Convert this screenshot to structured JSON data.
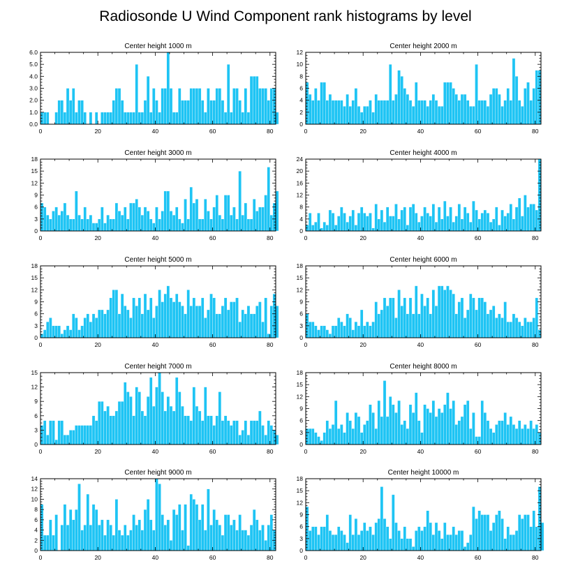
{
  "title": "Radiosonde U Wind Component rank histograms by level",
  "chart_data": [
    {
      "type": "bar",
      "title": "Center height 1000 m",
      "xlim": [
        0,
        82
      ],
      "ylim": [
        0,
        6
      ],
      "xticks": [
        0,
        20,
        40,
        60,
        80
      ],
      "yticks": [
        0,
        1,
        2,
        3,
        4,
        5,
        6
      ],
      "yticklabels": [
        "0.0",
        "1.0",
        "2.0",
        "3.0",
        "4.0",
        "5.0",
        "6.0"
      ],
      "values": [
        1,
        1,
        1,
        0,
        0,
        1,
        2,
        2,
        1,
        3,
        2,
        3,
        1,
        2,
        2,
        1,
        0,
        1,
        0,
        1,
        0,
        1,
        1,
        1,
        1,
        2,
        3,
        3,
        2,
        1,
        1,
        1,
        1,
        5,
        1,
        1,
        2,
        4,
        1,
        3,
        2,
        1,
        3,
        3,
        6,
        3,
        1,
        1,
        3,
        2,
        2,
        2,
        3,
        3,
        3,
        3,
        2,
        1,
        3,
        2,
        2,
        3,
        3,
        2,
        1,
        5,
        1,
        3,
        3,
        2,
        1,
        3,
        1,
        4,
        4,
        4,
        3,
        3,
        3,
        2,
        3,
        3,
        1
      ]
    },
    {
      "type": "bar",
      "title": "Center height 2000 m",
      "xlim": [
        0,
        82
      ],
      "ylim": [
        0,
        12
      ],
      "xticks": [
        0,
        20,
        40,
        60,
        80
      ],
      "yticks": [
        0,
        2,
        4,
        6,
        8,
        10,
        12
      ],
      "yticklabels": [
        "0",
        "2",
        "4",
        "6",
        "8",
        "10",
        "12"
      ],
      "values": [
        7,
        5,
        4,
        6,
        4,
        7,
        7,
        4,
        5,
        4,
        4,
        4,
        4,
        3,
        5,
        3,
        4,
        6,
        3,
        2,
        3,
        3,
        4,
        2,
        5,
        4,
        4,
        4,
        4,
        10,
        4,
        5,
        9,
        8,
        6,
        5,
        4,
        3,
        7,
        4,
        4,
        4,
        3,
        4,
        5,
        4,
        3,
        3,
        7,
        7,
        7,
        6,
        5,
        4,
        5,
        5,
        4,
        3,
        3,
        10,
        4,
        4,
        4,
        3,
        5,
        6,
        6,
        5,
        3,
        4,
        6,
        4,
        11,
        8,
        4,
        3,
        6,
        7,
        4,
        6,
        9,
        9
      ]
    },
    {
      "type": "bar",
      "title": "Center height 3000 m",
      "xlim": [
        0,
        82
      ],
      "ylim": [
        0,
        18
      ],
      "xticks": [
        0,
        20,
        40,
        60,
        80
      ],
      "yticks": [
        0,
        3,
        6,
        9,
        12,
        15,
        18
      ],
      "yticklabels": [
        "0",
        "3",
        "6",
        "9",
        "12",
        "15",
        "18"
      ],
      "values": [
        7,
        6,
        4,
        3,
        5,
        6,
        4,
        5,
        7,
        4,
        3,
        3,
        10,
        4,
        3,
        6,
        3,
        4,
        2,
        2,
        3,
        6,
        2,
        4,
        3,
        3,
        7,
        5,
        4,
        6,
        3,
        7,
        7,
        8,
        6,
        4,
        6,
        5,
        3,
        2,
        6,
        3,
        5,
        10,
        10,
        5,
        4,
        6,
        3,
        2,
        8,
        3,
        11,
        7,
        8,
        3,
        3,
        8,
        5,
        3,
        6,
        9,
        4,
        3,
        9,
        9,
        4,
        6,
        3,
        15,
        4,
        7,
        3,
        3,
        8,
        5,
        6,
        6,
        9,
        16,
        4,
        7,
        10
      ]
    },
    {
      "type": "bar",
      "title": "Center height 4000 m",
      "xlim": [
        0,
        82
      ],
      "ylim": [
        0,
        24
      ],
      "xticks": [
        0,
        20,
        40,
        60,
        80
      ],
      "yticks": [
        0,
        4,
        8,
        12,
        16,
        20,
        24
      ],
      "yticklabels": [
        "0",
        "4",
        "8",
        "12",
        "16",
        "20",
        "24"
      ],
      "values": [
        2,
        6,
        2,
        3,
        6,
        1,
        3,
        2,
        7,
        6,
        2,
        5,
        8,
        6,
        3,
        5,
        7,
        2,
        6,
        8,
        6,
        5,
        6,
        1,
        9,
        4,
        7,
        3,
        8,
        5,
        5,
        9,
        4,
        7,
        8,
        2,
        8,
        9,
        6,
        3,
        5,
        8,
        6,
        5,
        9,
        3,
        8,
        4,
        10,
        5,
        8,
        3,
        5,
        9,
        4,
        8,
        6,
        3,
        10,
        7,
        4,
        6,
        7,
        6,
        3,
        4,
        8,
        2,
        7,
        5,
        6,
        9,
        4,
        8,
        11,
        5,
        12,
        8,
        9,
        9,
        7,
        24
      ]
    },
    {
      "type": "bar",
      "title": "Center height 5000 m",
      "xlim": [
        0,
        82
      ],
      "ylim": [
        0,
        18
      ],
      "xticks": [
        0,
        20,
        40,
        60,
        80
      ],
      "yticks": [
        0,
        3,
        6,
        9,
        12,
        15,
        18
      ],
      "yticklabels": [
        "0",
        "3",
        "6",
        "9",
        "12",
        "15",
        "18"
      ],
      "values": [
        1,
        2,
        4,
        5,
        3,
        3,
        3,
        1,
        2,
        3,
        2,
        6,
        5,
        2,
        3,
        5,
        6,
        4,
        6,
        5,
        7,
        7,
        6,
        7,
        10,
        12,
        12,
        6,
        11,
        8,
        7,
        5,
        10,
        8,
        10,
        6,
        11,
        7,
        10,
        5,
        8,
        12,
        9,
        11,
        13,
        10,
        9,
        11,
        9,
        8,
        6,
        12,
        8,
        10,
        8,
        8,
        10,
        5,
        7,
        11,
        10,
        6,
        6,
        8,
        10,
        7,
        9,
        9,
        10,
        4,
        7,
        6,
        8,
        6,
        6,
        8,
        9,
        4,
        10,
        1,
        8,
        11,
        8
      ]
    },
    {
      "type": "bar",
      "title": "Center height 6000 m",
      "xlim": [
        0,
        82
      ],
      "ylim": [
        0,
        18
      ],
      "xticks": [
        0,
        20,
        40,
        60,
        80
      ],
      "yticks": [
        0,
        3,
        6,
        9,
        12,
        15,
        18
      ],
      "yticklabels": [
        "0",
        "3",
        "6",
        "9",
        "12",
        "15",
        "18"
      ],
      "values": [
        6,
        4,
        4,
        3,
        2,
        3,
        3,
        2,
        1,
        3,
        3,
        5,
        4,
        3,
        6,
        5,
        2,
        4,
        3,
        7,
        3,
        4,
        3,
        4,
        9,
        6,
        7,
        10,
        8,
        10,
        10,
        5,
        12,
        8,
        10,
        6,
        10,
        6,
        13,
        6,
        11,
        8,
        10,
        6,
        12,
        8,
        13,
        13,
        12,
        13,
        12,
        11,
        6,
        9,
        10,
        5,
        7,
        11,
        10,
        7,
        10,
        10,
        9,
        6,
        7,
        8,
        5,
        6,
        5,
        9,
        4,
        4,
        6,
        5,
        4,
        3,
        5,
        4,
        4,
        5,
        10,
        2
      ]
    },
    {
      "type": "bar",
      "title": "Center height 7000 m",
      "xlim": [
        0,
        82
      ],
      "ylim": [
        0,
        15
      ],
      "xticks": [
        0,
        20,
        40,
        60,
        80
      ],
      "yticks": [
        0,
        3,
        6,
        9,
        12,
        15
      ],
      "yticklabels": [
        "0",
        "3",
        "6",
        "9",
        "12",
        "15"
      ],
      "values": [
        4,
        5,
        2,
        5,
        5,
        1,
        5,
        5,
        2,
        2,
        3,
        3,
        4,
        4,
        4,
        4,
        4,
        4,
        6,
        5,
        9,
        9,
        7,
        8,
        6,
        6,
        7,
        9,
        9,
        13,
        11,
        10,
        6,
        12,
        11,
        7,
        6,
        10,
        14,
        8,
        12,
        15,
        11,
        7,
        10,
        8,
        7,
        14,
        11,
        8,
        6,
        6,
        5,
        12,
        8,
        7,
        5,
        12,
        6,
        6,
        4,
        6,
        11,
        5,
        6,
        5,
        4,
        5,
        5,
        2,
        3,
        5,
        2,
        5,
        5,
        5,
        7,
        4,
        2,
        5,
        4,
        3,
        2
      ]
    },
    {
      "type": "bar",
      "title": "Center height 8000 m",
      "xlim": [
        0,
        82
      ],
      "ylim": [
        0,
        18
      ],
      "xticks": [
        0,
        20,
        40,
        60,
        80
      ],
      "yticks": [
        0,
        3,
        6,
        9,
        12,
        15,
        18
      ],
      "yticklabels": [
        "0",
        "3",
        "6",
        "9",
        "12",
        "15",
        "18"
      ],
      "values": [
        4,
        4,
        4,
        3,
        2,
        1,
        3,
        6,
        4,
        5,
        11,
        4,
        5,
        3,
        8,
        6,
        4,
        8,
        7,
        3,
        5,
        6,
        10,
        8,
        4,
        11,
        7,
        16,
        7,
        12,
        10,
        8,
        11,
        5,
        6,
        4,
        10,
        8,
        13,
        6,
        3,
        10,
        9,
        8,
        11,
        7,
        9,
        8,
        10,
        13,
        9,
        11,
        5,
        6,
        7,
        10,
        11,
        4,
        8,
        2,
        2,
        11,
        8,
        6,
        4,
        3,
        5,
        6,
        6,
        8,
        5,
        7,
        5,
        4,
        6,
        4,
        5,
        4,
        6,
        4,
        5,
        3
      ]
    },
    {
      "type": "bar",
      "title": "Center height 9000 m",
      "xlim": [
        0,
        82
      ],
      "ylim": [
        0,
        14
      ],
      "xticks": [
        0,
        20,
        40,
        60,
        80
      ],
      "yticks": [
        0,
        2,
        4,
        6,
        8,
        10,
        12,
        14
      ],
      "yticklabels": [
        "0",
        "2",
        "4",
        "6",
        "8",
        "10",
        "12",
        "14"
      ],
      "values": [
        9,
        3,
        3,
        6,
        3,
        7,
        0,
        5,
        9,
        5,
        8,
        6,
        8,
        13,
        4,
        5,
        11,
        5,
        9,
        8,
        5,
        6,
        3,
        6,
        5,
        3,
        10,
        4,
        3,
        5,
        3,
        4,
        7,
        5,
        6,
        4,
        8,
        10,
        6,
        4,
        14,
        13,
        7,
        5,
        6,
        2,
        8,
        7,
        9,
        4,
        9,
        1,
        11,
        10,
        9,
        6,
        9,
        4,
        12,
        5,
        8,
        6,
        5,
        3,
        7,
        7,
        5,
        6,
        4,
        7,
        4,
        4,
        3,
        5,
        8,
        6,
        4,
        5,
        2,
        5,
        7,
        4
      ]
    },
    {
      "type": "bar",
      "title": "Center height 10000 m",
      "xlim": [
        0,
        82
      ],
      "ylim": [
        0,
        18
      ],
      "xticks": [
        0,
        20,
        40,
        60,
        80
      ],
      "yticks": [
        0,
        3,
        6,
        9,
        12,
        15,
        18
      ],
      "yticklabels": [
        "0",
        "3",
        "6",
        "9",
        "12",
        "15",
        "18"
      ],
      "values": [
        11,
        5,
        6,
        6,
        4,
        6,
        6,
        9,
        5,
        4,
        4,
        6,
        5,
        4,
        2,
        9,
        4,
        8,
        4,
        5,
        7,
        5,
        6,
        4,
        7,
        8,
        16,
        8,
        6,
        3,
        14,
        7,
        5,
        3,
        6,
        3,
        3,
        1,
        5,
        6,
        5,
        6,
        10,
        7,
        4,
        7,
        5,
        3,
        7,
        4,
        4,
        6,
        4,
        5,
        5,
        1,
        2,
        4,
        11,
        8,
        10,
        9,
        9,
        9,
        5,
        7,
        9,
        10,
        8,
        3,
        6,
        4,
        4,
        5,
        9,
        8,
        9,
        9,
        6,
        10,
        6,
        16,
        7
      ]
    }
  ]
}
